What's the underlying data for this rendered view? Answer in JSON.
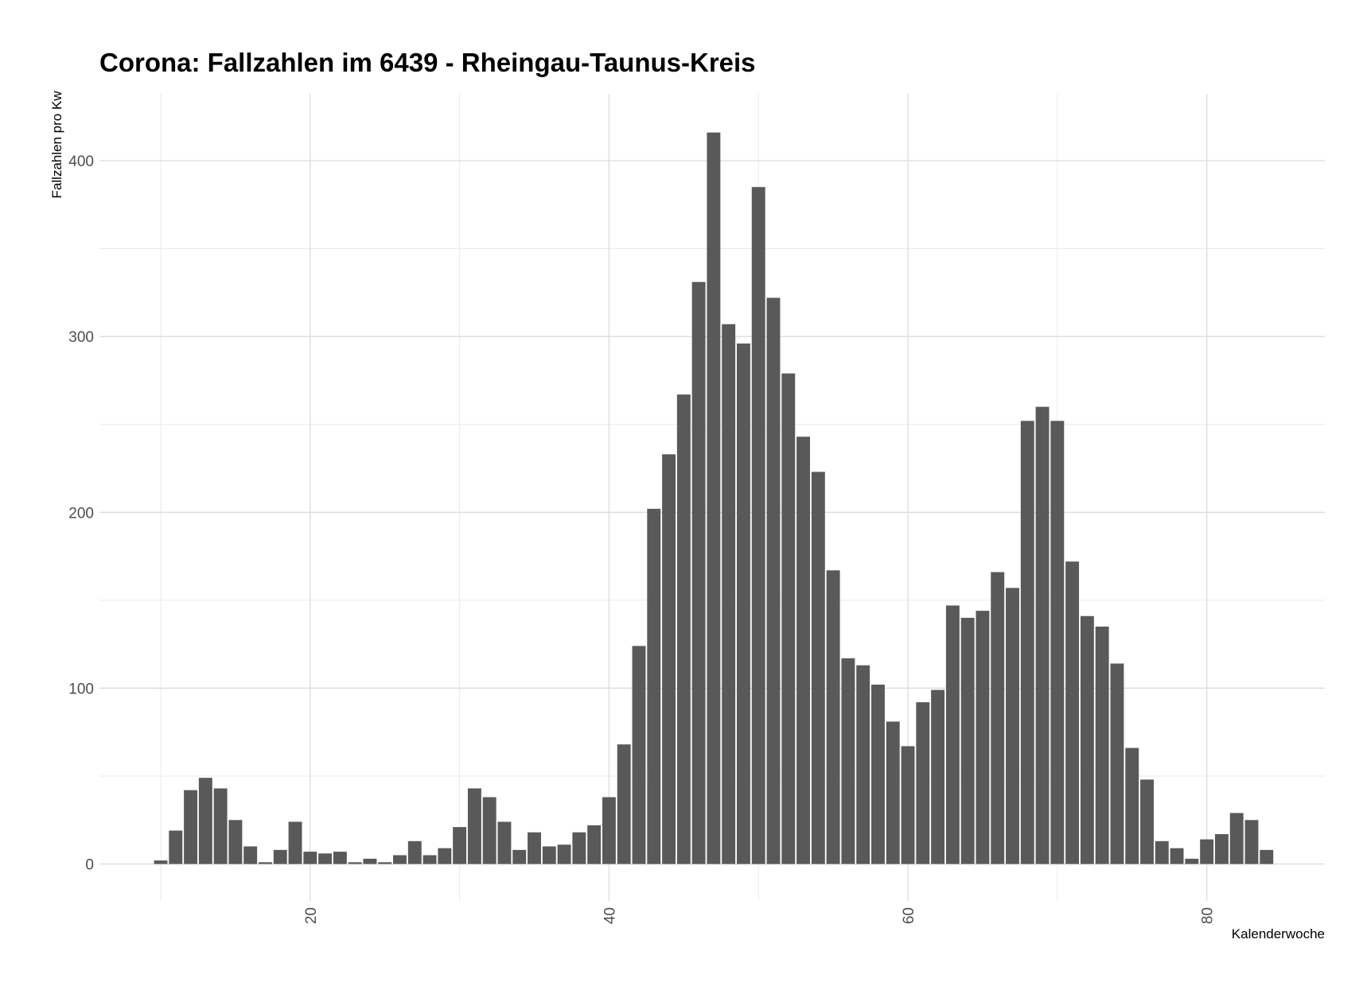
{
  "chart_data": {
    "type": "bar",
    "title": "Corona: Fallzahlen im 6439 - Rheingau-Taunus-Kreis",
    "xlabel": "Kalenderwoche",
    "ylabel": "Fallzahlen pro Kw",
    "x_ticks": [
      20,
      40,
      60,
      80
    ],
    "y_ticks": [
      0,
      100,
      200,
      300,
      400
    ],
    "xlim": [
      5.9,
      87.9
    ],
    "ylim": [
      -21,
      438
    ],
    "grid": true,
    "bar_color": "#595959",
    "x": [
      10,
      11,
      12,
      13,
      14,
      15,
      16,
      17,
      18,
      19,
      20,
      21,
      22,
      23,
      24,
      25,
      26,
      27,
      28,
      29,
      30,
      31,
      32,
      33,
      34,
      35,
      36,
      37,
      38,
      39,
      40,
      41,
      42,
      43,
      44,
      45,
      46,
      47,
      48,
      49,
      50,
      51,
      52,
      53,
      54,
      55,
      56,
      57,
      58,
      59,
      60,
      61,
      62,
      63,
      64,
      65,
      66,
      67,
      68,
      69,
      70,
      71,
      72,
      73,
      74,
      75,
      76,
      77,
      78,
      79,
      80,
      81,
      82,
      83,
      84
    ],
    "values": [
      2,
      19,
      42,
      49,
      43,
      25,
      10,
      1,
      8,
      24,
      7,
      6,
      7,
      1,
      3,
      1,
      5,
      13,
      5,
      9,
      21,
      43,
      38,
      24,
      8,
      18,
      10,
      11,
      18,
      22,
      38,
      68,
      124,
      202,
      233,
      267,
      331,
      416,
      307,
      296,
      385,
      322,
      279,
      243,
      223,
      167,
      117,
      113,
      102,
      81,
      67,
      92,
      99,
      147,
      140,
      144,
      166,
      157,
      252,
      260,
      252,
      172,
      141,
      135,
      114,
      66,
      48,
      13,
      9,
      3,
      14,
      17,
      29,
      25,
      8
    ]
  }
}
